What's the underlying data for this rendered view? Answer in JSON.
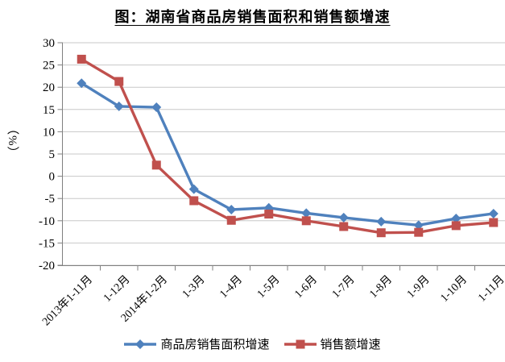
{
  "title": "图：湖南省商品房销售面积和销售额增速",
  "chart_data": {
    "type": "line",
    "title": "图：湖南省商品房销售面积和销售额增速",
    "xlabel": "",
    "ylabel": "（%）",
    "ylim": [
      -20,
      30
    ],
    "ytick_step": 5,
    "grid": true,
    "legend_position": "bottom",
    "categories": [
      "2013年1-11月",
      "1-12月",
      "2014年1-2月",
      "1-3月",
      "1-4月",
      "1-5月",
      "1-6月",
      "1-7月",
      "1-8月",
      "1-9月",
      "1-10月",
      "1-11月"
    ],
    "series": [
      {
        "name": "商品房销售面积增速",
        "color": "#4F81BD",
        "marker": "diamond",
        "values": [
          20.9,
          15.7,
          15.5,
          -2.9,
          -7.5,
          -7.1,
          -8.3,
          -9.3,
          -10.2,
          -11.0,
          -9.5,
          -8.4
        ]
      },
      {
        "name": "销售额增速",
        "color": "#C0504D",
        "marker": "square",
        "values": [
          26.3,
          21.3,
          2.5,
          -5.5,
          -9.9,
          -8.5,
          -10.0,
          -11.3,
          -12.7,
          -12.6,
          -11.1,
          -10.4
        ]
      }
    ],
    "colors": {
      "gridline": "#C8C8C8",
      "axis": "#808080",
      "text": "#000000",
      "background": "#FFFFFF"
    }
  }
}
